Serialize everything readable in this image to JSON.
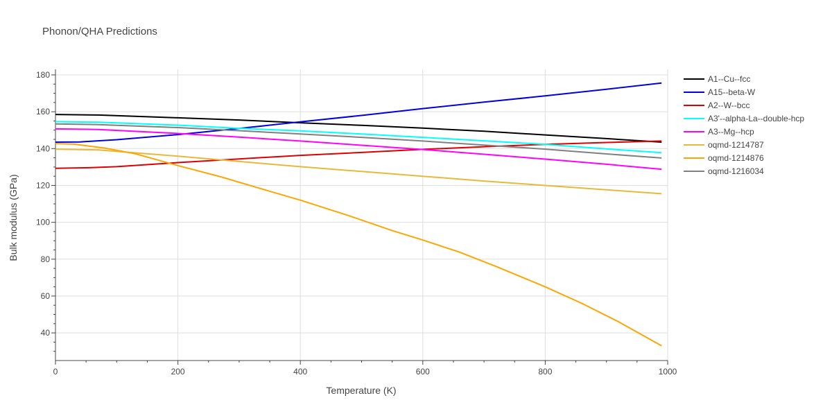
{
  "chart_data": {
    "type": "line",
    "title": "Phonon/QHA Predictions",
    "xlabel": "Temperature (K)",
    "ylabel": "Bulk modulus (GPa)",
    "xlim": [
      0,
      1000
    ],
    "ylim": [
      25,
      183
    ],
    "xticks": [
      0,
      200,
      400,
      600,
      800,
      1000
    ],
    "yticks": [
      40,
      60,
      80,
      100,
      120,
      140,
      160,
      180
    ],
    "grid": true,
    "legend_position": "right",
    "series": [
      {
        "name": "A1--Cu--fcc",
        "color": "#000000",
        "x": [
          0,
          70,
          200,
          300,
          400,
          500,
          600,
          700,
          800,
          900,
          990
        ],
        "y": [
          158.5,
          158.2,
          156.7,
          155.5,
          154.0,
          152.6,
          151.1,
          149.4,
          147.4,
          145.4,
          143.5
        ]
      },
      {
        "name": "A15--beta-W",
        "color": "#0000dd",
        "x": [
          0,
          40,
          100,
          200,
          300,
          400,
          500,
          600,
          700,
          800,
          900,
          990
        ],
        "y": [
          143.5,
          143.6,
          144.8,
          147.6,
          150.9,
          154.5,
          158.0,
          161.7,
          165.2,
          168.6,
          172.2,
          175.6
        ]
      },
      {
        "name": "A2--W--bcc",
        "color": "#dd0000",
        "x": [
          0,
          55,
          100,
          200,
          300,
          400,
          500,
          600,
          700,
          800,
          900,
          990
        ],
        "y": [
          129.3,
          129.6,
          130.2,
          132.4,
          134.4,
          136.3,
          137.9,
          139.6,
          141.0,
          142.3,
          143.3,
          144.1
        ]
      },
      {
        "name": "A3'--alpha-La--double-hcp",
        "color": "#00ffff",
        "x": [
          0,
          70,
          200,
          300,
          400,
          500,
          600,
          700,
          800,
          900,
          990
        ],
        "y": [
          154.6,
          154.3,
          152.7,
          151.0,
          149.6,
          147.9,
          146.1,
          144.2,
          142.3,
          139.8,
          137.8
        ]
      },
      {
        "name": "A3--Mg--hcp",
        "color": "#ff00ff",
        "x": [
          0,
          70,
          200,
          300,
          400,
          500,
          600,
          700,
          800,
          900,
          990
        ],
        "y": [
          150.7,
          150.4,
          148.2,
          146.2,
          144.1,
          141.8,
          139.5,
          136.9,
          134.3,
          131.5,
          128.8
        ]
      },
      {
        "name": "oqmd-1214787",
        "color": "#eab839",
        "x": [
          0,
          70,
          200,
          300,
          400,
          500,
          600,
          700,
          800,
          900,
          990
        ],
        "y": [
          139.7,
          139.3,
          135.9,
          133.0,
          130.2,
          127.6,
          125.0,
          122.4,
          120.0,
          117.6,
          115.5
        ]
      },
      {
        "name": "oqmd-1214876",
        "color": "#ffa500",
        "x": [
          0,
          30,
          80,
          130,
          200,
          270,
          330,
          400,
          480,
          550,
          600,
          660,
          720,
          800,
          860,
          920,
          990
        ],
        "y": [
          142.7,
          142.4,
          140.3,
          137.2,
          130.8,
          124.7,
          118.8,
          112.0,
          103.5,
          95.5,
          90.4,
          83.8,
          76.0,
          65.0,
          56.0,
          46.0,
          33.0
        ]
      },
      {
        "name": "oqmd-1216034",
        "color": "#808080",
        "x": [
          0,
          70,
          200,
          300,
          400,
          500,
          600,
          700,
          800,
          900,
          990
        ],
        "y": [
          153.4,
          153.0,
          151.4,
          149.7,
          147.9,
          146.1,
          144.1,
          141.9,
          139.7,
          137.1,
          134.9
        ]
      }
    ]
  }
}
